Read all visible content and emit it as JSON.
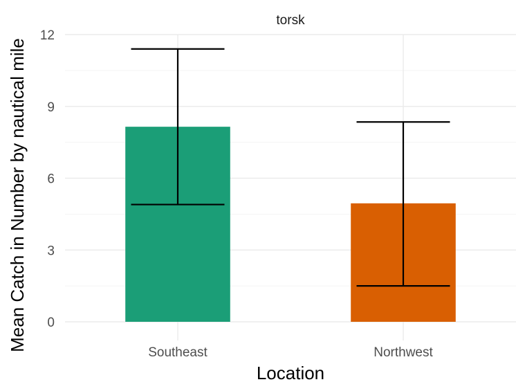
{
  "chart_data": {
    "type": "bar",
    "facet": "torsk",
    "categories": [
      "Southeast",
      "Northwest"
    ],
    "values": [
      8.15,
      4.95
    ],
    "error_low": [
      4.9,
      1.5
    ],
    "error_high": [
      11.4,
      8.35
    ],
    "colors": [
      "#1b9e77",
      "#d95f02"
    ],
    "xlabel": "Location",
    "ylabel": "Mean Catch in Number by nautical mile",
    "ylim": [
      0,
      12
    ],
    "yticks": [
      0,
      3,
      6,
      9,
      12
    ],
    "ytick_labels": [
      "0",
      "3",
      "6",
      "9",
      "12"
    ],
    "grid": true,
    "legend": "none"
  }
}
